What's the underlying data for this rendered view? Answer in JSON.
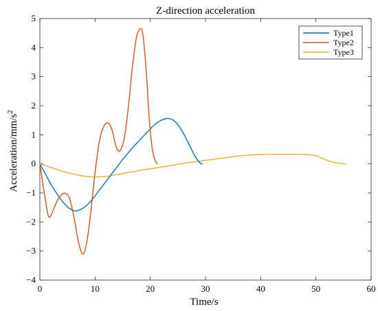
{
  "chart_data": {
    "type": "line",
    "title": "Z-direction acceleration",
    "xlabel": "Time/s",
    "ylabel": "Acceleration/mm/s",
    "ylabel_superscript": "2",
    "xlim": [
      0,
      60
    ],
    "ylim": [
      -4,
      5
    ],
    "xticks": [
      0,
      10,
      20,
      30,
      40,
      50,
      60
    ],
    "yticks": [
      -4,
      -3,
      -2,
      -1,
      0,
      1,
      2,
      3,
      4,
      5
    ],
    "xtick_labels": [
      "0",
      "10",
      "20",
      "30",
      "40",
      "50",
      "60"
    ],
    "ytick_labels": [
      "−4",
      "−3",
      "−2",
      "−1",
      "0",
      "1",
      "2",
      "3",
      "4",
      "5"
    ],
    "grid": false,
    "legend_position": "top-right",
    "series": [
      {
        "name": "Type1",
        "color": "#0072BD",
        "x": [
          0,
          1,
          2,
          3,
          4,
          5,
          6,
          6.5,
          7,
          8,
          9,
          10,
          11,
          12,
          13,
          14,
          15,
          16,
          17,
          18,
          19,
          20,
          21,
          22,
          23,
          24,
          25,
          26,
          27,
          28,
          29,
          29.5
        ],
        "y": [
          0,
          -0.35,
          -0.7,
          -1.0,
          -1.27,
          -1.48,
          -1.6,
          -1.62,
          -1.6,
          -1.5,
          -1.33,
          -1.1,
          -0.85,
          -0.6,
          -0.35,
          -0.1,
          0.15,
          0.38,
          0.6,
          0.8,
          1.0,
          1.2,
          1.38,
          1.5,
          1.56,
          1.52,
          1.35,
          1.05,
          0.68,
          0.3,
          0.03,
          0
        ]
      },
      {
        "name": "Type2",
        "color": "#D95319",
        "x": [
          0,
          0.8,
          1.6,
          2.4,
          3.2,
          4.0,
          4.7,
          5.4,
          6.2,
          7.0,
          7.8,
          8.5,
          9.2,
          10.0,
          10.8,
          11.6,
          12.4,
          13.1,
          13.8,
          14.5,
          15.3,
          16.0,
          16.8,
          17.5,
          18.2,
          18.7,
          19.3,
          19.8,
          20.3,
          20.8,
          21.3
        ],
        "y": [
          0,
          -1.0,
          -1.82,
          -1.6,
          -1.25,
          -1.05,
          -1.02,
          -1.2,
          -1.85,
          -2.7,
          -3.1,
          -2.7,
          -1.7,
          -0.3,
          0.8,
          1.3,
          1.4,
          1.15,
          0.6,
          0.45,
          0.9,
          1.9,
          3.4,
          4.35,
          4.65,
          4.4,
          3.1,
          1.6,
          0.6,
          0.15,
          0
        ]
      },
      {
        "name": "Type3",
        "color": "#EDB120",
        "x": [
          0,
          2,
          4,
          6,
          8,
          10,
          12,
          14,
          16,
          18,
          20,
          22,
          24,
          26,
          28,
          30,
          32,
          34,
          36,
          38,
          40,
          42,
          44,
          46,
          48,
          50,
          52,
          54,
          55.5
        ],
        "y": [
          0,
          -0.12,
          -0.25,
          -0.35,
          -0.42,
          -0.45,
          -0.43,
          -0.37,
          -0.3,
          -0.23,
          -0.17,
          -0.11,
          -0.05,
          0.02,
          0.07,
          0.12,
          0.17,
          0.22,
          0.27,
          0.3,
          0.32,
          0.33,
          0.33,
          0.33,
          0.32,
          0.28,
          0.12,
          0.02,
          0
        ]
      }
    ]
  }
}
